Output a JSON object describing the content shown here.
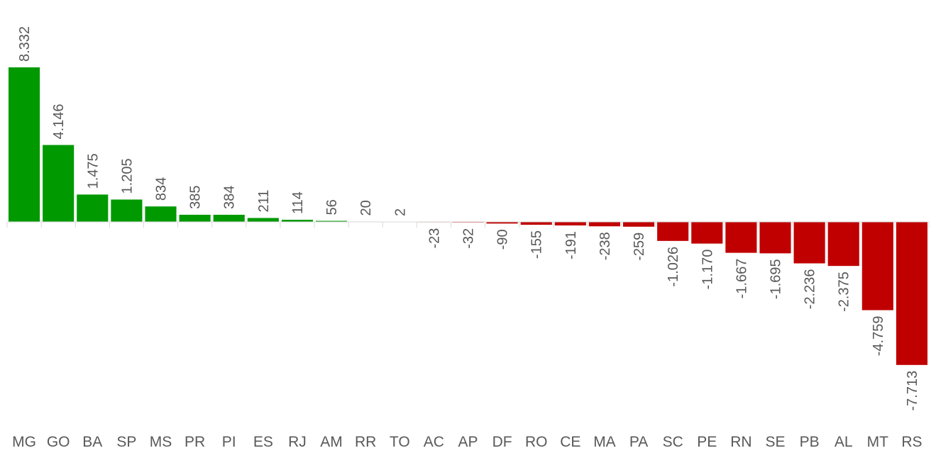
{
  "chart_data": {
    "type": "bar",
    "categories": [
      "MG",
      "GO",
      "BA",
      "SP",
      "MS",
      "PR",
      "PI",
      "ES",
      "RJ",
      "AM",
      "RR",
      "TO",
      "AC",
      "AP",
      "DF",
      "RO",
      "CE",
      "MA",
      "PA",
      "SC",
      "PE",
      "RN",
      "SE",
      "PB",
      "AL",
      "MT",
      "RS"
    ],
    "values": [
      8332,
      4146,
      1475,
      1205,
      834,
      385,
      384,
      211,
      114,
      56,
      20,
      2,
      -23,
      -32,
      -90,
      -155,
      -191,
      -238,
      -259,
      -1026,
      -1170,
      -1667,
      -1695,
      -2236,
      -2375,
      -4759,
      -7713
    ],
    "data_labels": [
      "8.332",
      "4.146",
      "1.475",
      "1.205",
      "834",
      "385",
      "384",
      "211",
      "114",
      "56",
      "20",
      "2",
      "-23",
      "-32",
      "-90",
      "-155",
      "-191",
      "-238",
      "-259",
      "-1.026",
      "-1.170",
      "-1.667",
      "-1.695",
      "-2.236",
      "-2.375",
      "-4.759",
      "-7.713"
    ],
    "title": "",
    "xlabel": "",
    "ylabel": "",
    "colors": {
      "positive": "#009900",
      "negative": "#C00000",
      "axis": "#D9D9D9",
      "label": "#595959"
    },
    "grid": false,
    "legend": "none"
  }
}
